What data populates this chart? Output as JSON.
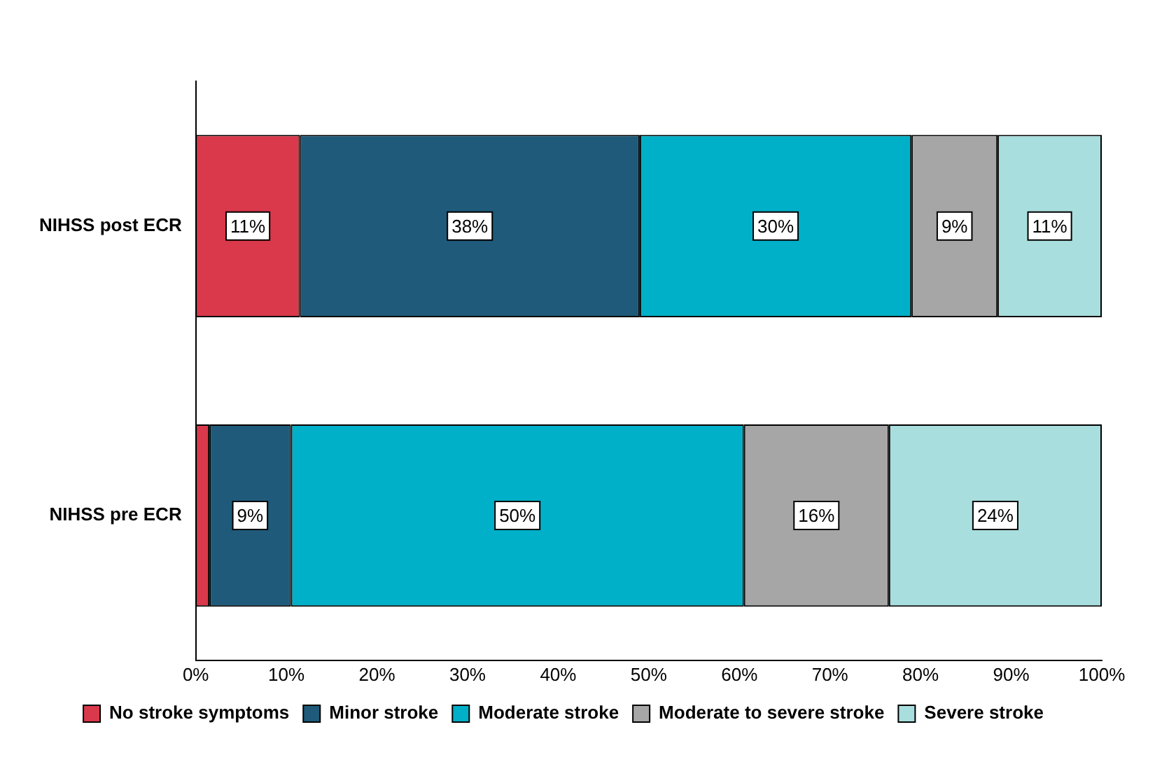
{
  "chart_data": {
    "type": "bar",
    "orientation": "horizontal",
    "stacked": true,
    "categories": [
      "NIHSS post ECR",
      "NIHSS pre ECR"
    ],
    "series": [
      {
        "name": "No stroke symptoms",
        "color": "#d9394a",
        "values": [
          11.5,
          1.5
        ],
        "value_labels": [
          "11%",
          null
        ]
      },
      {
        "name": "Minor stroke",
        "color": "#1f5a7a",
        "values": [
          37.5,
          9
        ],
        "value_labels": [
          "38%",
          "9%"
        ]
      },
      {
        "name": "Moderate stroke",
        "color": "#00b0c8",
        "values": [
          30,
          50
        ],
        "value_labels": [
          "30%",
          "50%"
        ]
      },
      {
        "name": "Moderate to severe stroke",
        "color": "#a6a6a6",
        "values": [
          9.5,
          16
        ],
        "value_labels": [
          "9%",
          "16%"
        ]
      },
      {
        "name": "Severe stroke",
        "color": "#a8dedd",
        "values": [
          11.5,
          23.5
        ],
        "value_labels": [
          "11%",
          "24%"
        ]
      }
    ],
    "xlim": [
      0,
      100
    ],
    "xticks": [
      {
        "value": 0,
        "label": "0%"
      },
      {
        "value": 10,
        "label": "10%"
      },
      {
        "value": 20,
        "label": "20%"
      },
      {
        "value": 30,
        "label": "30%"
      },
      {
        "value": 40,
        "label": "40%"
      },
      {
        "value": 50,
        "label": "50%"
      },
      {
        "value": 60,
        "label": "60%"
      },
      {
        "value": 70,
        "label": "70%"
      },
      {
        "value": 80,
        "label": "80%"
      },
      {
        "value": 90,
        "label": "90%"
      },
      {
        "value": 100,
        "label": "100%"
      }
    ],
    "grid": false,
    "legend": "bottom"
  }
}
